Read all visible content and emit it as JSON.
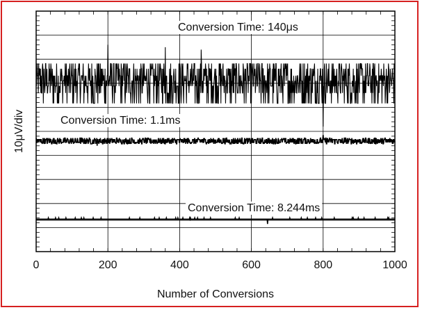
{
  "frame_color": "#d62020",
  "chart_data": {
    "type": "line",
    "title": "",
    "xlabel": "Number of Conversions",
    "ylabel": "10μV/div",
    "xlim": [
      0,
      1000
    ],
    "x_ticks": [
      "0",
      "200",
      "400",
      "600",
      "800",
      "1000"
    ],
    "ylim_divisions": [
      0,
      10
    ],
    "grid": true,
    "series": [
      {
        "name": "Conversion Time: 140μs",
        "baseline_div": 7.1,
        "noise_rms_div": 0.45,
        "spikes": [
          [
            200,
            8.6
          ],
          [
            360,
            8.5
          ],
          [
            460,
            8.4
          ],
          [
            800,
            5.2
          ]
        ]
      },
      {
        "name": "Conversion Time: 1.1ms",
        "baseline_div": 4.6,
        "noise_rms_div": 0.06,
        "spikes": [
          [
            170,
            4.4
          ],
          [
            800,
            4.85
          ]
        ]
      },
      {
        "name": "Conversion Time: 8.244ms",
        "baseline_div": 1.35,
        "noise_rms_div": 0.0,
        "spikes": [
          [
            645,
            1.15
          ]
        ]
      }
    ]
  }
}
